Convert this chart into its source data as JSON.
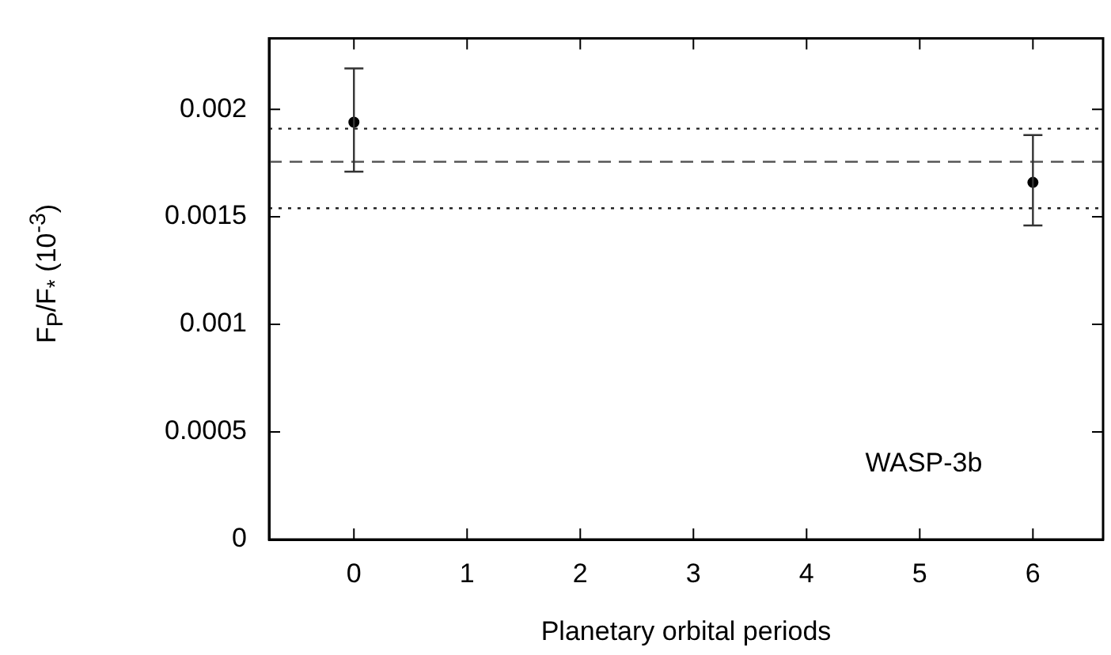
{
  "chart_data": {
    "type": "scatter",
    "xlabel": "Planetary orbital periods",
    "ylabel": "F$_{P}$/F$_{*}$   (10$^{-3}$)",
    "x": [
      0,
      6
    ],
    "values": [
      0.00194,
      0.00166
    ],
    "errors": [
      [
        0.00171,
        0.00219
      ],
      [
        0.00146,
        0.00188
      ]
    ],
    "color": "#000000",
    "marker": "circle",
    "xlim": [
      -0.75,
      6.62
    ],
    "xticks": [
      0,
      1,
      2,
      3,
      4,
      5,
      6
    ],
    "ylim": [
      0,
      0.00233
    ],
    "yticks": [
      0,
      0.0005,
      0.001,
      0.0015,
      0.002
    ],
    "grid": false,
    "legend": false,
    "ref_lines": [
      {
        "axis": "y",
        "value": 0.00191,
        "line_style": "dotted",
        "color": "#222222"
      },
      {
        "axis": "y",
        "value": 0.001756,
        "line_style": "dashed",
        "color": "#555555"
      },
      {
        "axis": "y",
        "value": 0.00154,
        "line_style": "dotted",
        "color": "#222222"
      }
    ],
    "annotations": [
      "WASP-3b"
    ]
  }
}
